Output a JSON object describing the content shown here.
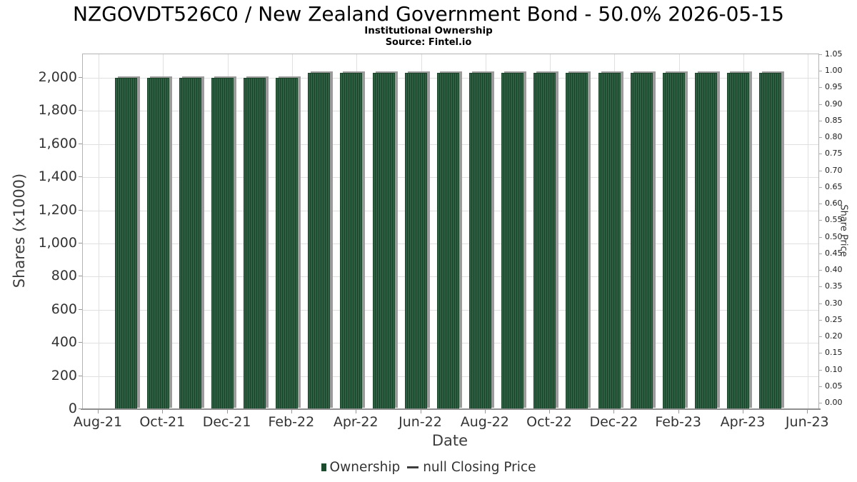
{
  "chart_data": {
    "type": "bar",
    "title": "NZGOVDT526C0 / New Zealand Government Bond - 50.0% 2026-05-15",
    "subtitle": "Institutional Ownership",
    "source": "Source: Fintel.io",
    "xlabel": "Date",
    "categories": [
      "Sep-21",
      "Oct-21",
      "Nov-21",
      "Dec-21",
      "Jan-22",
      "Feb-22",
      "Mar-22",
      "Apr-22",
      "May-22",
      "Jun-22",
      "Jul-22",
      "Aug-22",
      "Sep-22",
      "Oct-22",
      "Nov-22",
      "Dec-22",
      "Jan-23",
      "Feb-23",
      "Mar-23",
      "Apr-23",
      "May-23"
    ],
    "series": [
      {
        "name": "Ownership",
        "type": "bar",
        "color": "#1d4b2e",
        "values": [
          2000,
          2000,
          2000,
          2000,
          2000,
          2000,
          2030,
          2030,
          2030,
          2030,
          2030,
          2030,
          2030,
          2030,
          2030,
          2030,
          2030,
          2030,
          2030,
          2030,
          2030
        ]
      },
      {
        "name": "null Closing Price",
        "type": "line",
        "values": []
      }
    ],
    "x_tick_labels": [
      "Aug-21",
      "Oct-21",
      "Dec-21",
      "Feb-22",
      "Apr-22",
      "Jun-22",
      "Aug-22",
      "Oct-22",
      "Dec-22",
      "Feb-23",
      "Apr-23",
      "Jun-23"
    ],
    "y_left": {
      "label": "Shares (x1000)",
      "tick_values": [
        0,
        200,
        400,
        600,
        800,
        1000,
        1200,
        1400,
        1600,
        1800,
        2000
      ],
      "tick_labels": [
        "0",
        "200",
        "400",
        "600",
        "800",
        "1,000",
        "1,200",
        "1,400",
        "1,600",
        "1,800",
        "2,000"
      ],
      "lim": [
        0,
        2142
      ]
    },
    "y_right": {
      "label": "Share Price",
      "tick_labels": [
        "1.05",
        "1.00",
        "0.95",
        "0.90",
        "0.85",
        "0.80",
        "0.75",
        "0.70",
        "0.65",
        "0.60",
        "0.55",
        "0.50",
        "0.45",
        "0.40",
        "0.35",
        "0.30",
        "0.25",
        "0.20",
        "0.15",
        "0.10",
        "0.05",
        "0.00"
      ],
      "lim": [
        0,
        1.05
      ]
    },
    "legend": {
      "bar_label": "Ownership",
      "line_label": "null Closing Price"
    },
    "grid": true,
    "legend_position": "bottom",
    "colors": {
      "bar_base": "#2e6143",
      "bar_hatch": "#1a4027",
      "bar_shadow": "#9b9b9b",
      "grid": "#e0e0e0",
      "axis": "#b3b3b3",
      "text": "#333333"
    }
  }
}
